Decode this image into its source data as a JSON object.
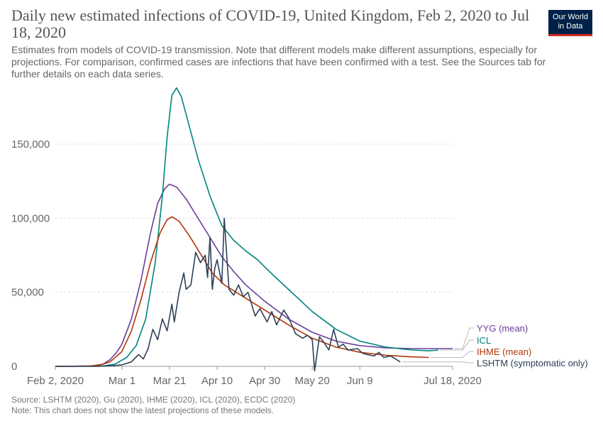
{
  "header": {
    "title": "Daily new estimated infections of COVID-19, United Kingdom, Feb 2, 2020 to Jul 18, 2020",
    "subtitle": "Estimates from models of COVID-19 transmission. Note that different models make different assumptions, especially for projections. For comparison, confirmed cases are infections that have been confirmed with a test. See the Sources tab for further details on each data series.",
    "logo_line1": "Our World",
    "logo_line2": "in Data"
  },
  "footer": {
    "source": "Source: LSHTM (2020), Gu (2020), IHME (2020), ICL (2020), ECDC (2020)",
    "note": "Note: This chart does not show the latest projections of these models."
  },
  "chart_data": {
    "type": "line",
    "title": "Daily new estimated infections of COVID-19, United Kingdom, Feb 2, 2020 to Jul 18, 2020",
    "x_axis": {
      "type": "date",
      "min": "2020-02-02",
      "max": "2020-07-18",
      "ticks": [
        "Feb 2, 2020",
        "Mar 1",
        "Mar 21",
        "Apr 10",
        "Apr 30",
        "May 20",
        "Jun 9",
        "Jul 18, 2020"
      ]
    },
    "y_axis": {
      "min": 0,
      "max": 185000,
      "ticks": [
        "0",
        "50,000",
        "100,000",
        "150,000"
      ]
    },
    "grid": "horizontal-dashed",
    "legend": "right-end-labels",
    "series": [
      {
        "name": "YYG (mean)",
        "color": "#6a3d9a",
        "points": [
          [
            "2020-02-02",
            0
          ],
          [
            "2020-02-17",
            200
          ],
          [
            "2020-02-22",
            1500
          ],
          [
            "2020-02-25",
            4500
          ],
          [
            "2020-02-28",
            10000
          ],
          [
            "2020-03-01",
            15000
          ],
          [
            "2020-03-05",
            32000
          ],
          [
            "2020-03-09",
            58000
          ],
          [
            "2020-03-13",
            90000
          ],
          [
            "2020-03-16",
            110000
          ],
          [
            "2020-03-19",
            120000
          ],
          [
            "2020-03-21",
            123000
          ],
          [
            "2020-03-24",
            121000
          ],
          [
            "2020-03-28",
            113000
          ],
          [
            "2020-04-02",
            100000
          ],
          [
            "2020-04-07",
            87000
          ],
          [
            "2020-04-12",
            74000
          ],
          [
            "2020-04-17",
            64000
          ],
          [
            "2020-04-22",
            55000
          ],
          [
            "2020-04-30",
            44000
          ],
          [
            "2020-05-10",
            32000
          ],
          [
            "2020-05-20",
            23000
          ],
          [
            "2020-05-30",
            17000
          ],
          [
            "2020-06-09",
            14000
          ],
          [
            "2020-06-20",
            12500
          ],
          [
            "2020-07-01",
            12000
          ],
          [
            "2020-07-18",
            12000
          ]
        ]
      },
      {
        "name": "ICL",
        "color": "#00847e",
        "points": [
          [
            "2020-02-02",
            0
          ],
          [
            "2020-02-22",
            300
          ],
          [
            "2020-02-27",
            1500
          ],
          [
            "2020-03-03",
            6000
          ],
          [
            "2020-03-07",
            14000
          ],
          [
            "2020-03-11",
            32000
          ],
          [
            "2020-03-15",
            70000
          ],
          [
            "2020-03-18",
            115000
          ],
          [
            "2020-03-20",
            155000
          ],
          [
            "2020-03-22",
            183000
          ],
          [
            "2020-03-24",
            188000
          ],
          [
            "2020-03-26",
            182000
          ],
          [
            "2020-03-28",
            170000
          ],
          [
            "2020-04-02",
            140000
          ],
          [
            "2020-04-07",
            115000
          ],
          [
            "2020-04-12",
            95000
          ],
          [
            "2020-04-17",
            85000
          ],
          [
            "2020-04-22",
            78000
          ],
          [
            "2020-04-27",
            72000
          ],
          [
            "2020-05-02",
            64000
          ],
          [
            "2020-05-10",
            52000
          ],
          [
            "2020-05-20",
            37000
          ],
          [
            "2020-05-30",
            25000
          ],
          [
            "2020-06-09",
            17000
          ],
          [
            "2020-06-20",
            13000
          ],
          [
            "2020-07-01",
            11000
          ],
          [
            "2020-07-08",
            10500
          ],
          [
            "2020-07-12",
            11000
          ]
        ]
      },
      {
        "name": "IHME (mean)",
        "color": "#b13507",
        "points": [
          [
            "2020-02-02",
            0
          ],
          [
            "2020-02-16",
            200
          ],
          [
            "2020-02-21",
            1000
          ],
          [
            "2020-02-25",
            3000
          ],
          [
            "2020-03-01",
            10000
          ],
          [
            "2020-03-05",
            24000
          ],
          [
            "2020-03-09",
            45000
          ],
          [
            "2020-03-13",
            70000
          ],
          [
            "2020-03-17",
            90000
          ],
          [
            "2020-03-20",
            99000
          ],
          [
            "2020-03-22",
            101000
          ],
          [
            "2020-03-25",
            98000
          ],
          [
            "2020-03-29",
            89000
          ],
          [
            "2020-04-03",
            76000
          ],
          [
            "2020-04-08",
            63000
          ],
          [
            "2020-04-13",
            55000
          ],
          [
            "2020-04-20",
            48000
          ],
          [
            "2020-04-30",
            38000
          ],
          [
            "2020-05-10",
            28000
          ],
          [
            "2020-05-20",
            19000
          ],
          [
            "2020-05-30",
            13000
          ],
          [
            "2020-06-09",
            9500
          ],
          [
            "2020-06-20",
            7500
          ],
          [
            "2020-06-30",
            6500
          ],
          [
            "2020-07-08",
            6000
          ]
        ]
      },
      {
        "name": "LSHTM (symptomatic only)",
        "color": "#2c4058",
        "points": [
          [
            "2020-02-02",
            0
          ],
          [
            "2020-02-20",
            0
          ],
          [
            "2020-02-26",
            500
          ],
          [
            "2020-03-01",
            1000
          ],
          [
            "2020-03-05",
            3000
          ],
          [
            "2020-03-08",
            8000
          ],
          [
            "2020-03-10",
            5000
          ],
          [
            "2020-03-12",
            12000
          ],
          [
            "2020-03-14",
            25000
          ],
          [
            "2020-03-16",
            18000
          ],
          [
            "2020-03-18",
            32000
          ],
          [
            "2020-03-20",
            24000
          ],
          [
            "2020-03-22",
            42000
          ],
          [
            "2020-03-23",
            30000
          ],
          [
            "2020-03-25",
            50000
          ],
          [
            "2020-03-27",
            63000
          ],
          [
            "2020-03-28",
            52000
          ],
          [
            "2020-03-30",
            55000
          ],
          [
            "2020-04-01",
            77000
          ],
          [
            "2020-04-03",
            70000
          ],
          [
            "2020-04-05",
            75000
          ],
          [
            "2020-04-06",
            60000
          ],
          [
            "2020-04-07",
            87000
          ],
          [
            "2020-04-08",
            52000
          ],
          [
            "2020-04-09",
            66000
          ],
          [
            "2020-04-10",
            72000
          ],
          [
            "2020-04-12",
            56000
          ],
          [
            "2020-04-13",
            100000
          ],
          [
            "2020-04-15",
            52000
          ],
          [
            "2020-04-17",
            48000
          ],
          [
            "2020-04-19",
            55000
          ],
          [
            "2020-04-21",
            47000
          ],
          [
            "2020-04-23",
            50000
          ],
          [
            "2020-04-26",
            34000
          ],
          [
            "2020-04-28",
            39000
          ],
          [
            "2020-05-01",
            30000
          ],
          [
            "2020-05-03",
            37000
          ],
          [
            "2020-05-05",
            28000
          ],
          [
            "2020-05-08",
            38000
          ],
          [
            "2020-05-10",
            33000
          ],
          [
            "2020-05-13",
            22000
          ],
          [
            "2020-05-16",
            19000
          ],
          [
            "2020-05-18",
            21000
          ],
          [
            "2020-05-20",
            18000
          ],
          [
            "2020-05-21",
            -3000
          ],
          [
            "2020-05-23",
            20000
          ],
          [
            "2020-05-25",
            16000
          ],
          [
            "2020-05-27",
            11000
          ],
          [
            "2020-05-29",
            25000
          ],
          [
            "2020-05-31",
            13000
          ],
          [
            "2020-06-02",
            15000
          ],
          [
            "2020-06-04",
            11000
          ],
          [
            "2020-06-08",
            12000
          ],
          [
            "2020-06-10",
            9000
          ],
          [
            "2020-06-12",
            8000
          ],
          [
            "2020-06-15",
            7000
          ],
          [
            "2020-06-17",
            9500
          ],
          [
            "2020-06-19",
            6000
          ],
          [
            "2020-06-22",
            7000
          ],
          [
            "2020-06-24",
            5000
          ],
          [
            "2020-06-26",
            3000
          ]
        ]
      }
    ]
  }
}
